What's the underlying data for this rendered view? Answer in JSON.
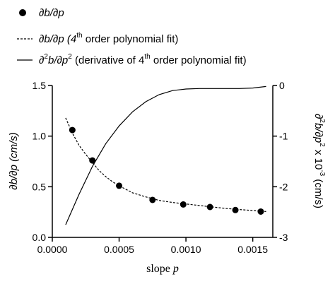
{
  "chart_data": {
    "type": "line",
    "legend": {
      "placement": "top",
      "entries": [
        {
          "key": "points",
          "marker": "filled-circle",
          "text": "∂b/∂p"
        },
        {
          "key": "fit",
          "marker": "dashed-line",
          "text_parts": [
            "∂b/∂p (4",
            "th",
            " order polynomial fit)"
          ]
        },
        {
          "key": "deriv",
          "marker": "solid-line",
          "text_parts": [
            "∂",
            "2",
            "b/∂p",
            "2",
            " (derivative of 4",
            "th",
            " order polynomial fit)"
          ]
        }
      ]
    },
    "xlabel": {
      "prefix": "slope ",
      "var": "p"
    },
    "ylabel_left": "∂b/∂p (cm/s)",
    "ylabel_right": {
      "parts": [
        "∂",
        "2",
        "b/∂p",
        "2",
        " x 10",
        "-3",
        "  (cm/s)"
      ]
    },
    "xlim": [
      0,
      0.00165
    ],
    "ylim_left": [
      0,
      1.5
    ],
    "ylim_right": [
      -3,
      0
    ],
    "xticks": [
      "0.0000",
      "0.0005",
      "0.0010",
      "0.0015"
    ],
    "xtick_values": [
      0,
      0.0005,
      0.001,
      0.0015
    ],
    "yticks_left": [
      "0.0",
      "0.5",
      "1.0",
      "1.5"
    ],
    "ytick_left_values": [
      0,
      0.5,
      1.0,
      1.5
    ],
    "yticks_right": [
      "0",
      "-1",
      "-2",
      "-3"
    ],
    "ytick_right_values": [
      0,
      -1,
      -2,
      -3
    ],
    "series": [
      {
        "name": "∂b/∂p",
        "axis": "left",
        "style": "markers",
        "x": [
          0.00015,
          0.0003,
          0.0005,
          0.00075,
          0.00098,
          0.00118,
          0.00137,
          0.00156
        ],
        "y": [
          1.06,
          0.76,
          0.51,
          0.37,
          0.325,
          0.3,
          0.27,
          0.255
        ]
      },
      {
        "name": "∂b/∂p (4th order polynomial fit)",
        "axis": "left",
        "style": "dashed",
        "x": [
          0.0001,
          0.00015,
          0.0002,
          0.00025,
          0.0003,
          0.00035,
          0.0004,
          0.00045,
          0.0005,
          0.0006,
          0.0007,
          0.0008,
          0.0009,
          0.001,
          0.0011,
          0.0012,
          0.0013,
          0.0014,
          0.0015,
          0.0016
        ],
        "y": [
          1.18,
          1.03,
          0.91,
          0.82,
          0.74,
          0.66,
          0.6,
          0.55,
          0.51,
          0.44,
          0.4,
          0.365,
          0.345,
          0.33,
          0.315,
          0.3,
          0.285,
          0.275,
          0.265,
          0.255
        ]
      },
      {
        "name": "∂²b/∂p² (derivative of 4th order polynomial fit)",
        "axis": "right",
        "style": "solid",
        "x": [
          0.0001,
          0.0002,
          0.0003,
          0.0004,
          0.0005,
          0.0006,
          0.0007,
          0.0008,
          0.0009,
          0.001,
          0.0011,
          0.0012,
          0.0013,
          0.0014,
          0.0015,
          0.0016
        ],
        "y": [
          -2.75,
          -2.15,
          -1.6,
          -1.15,
          -0.8,
          -0.52,
          -0.32,
          -0.18,
          -0.1,
          -0.07,
          -0.06,
          -0.06,
          -0.06,
          -0.06,
          -0.05,
          -0.02
        ]
      }
    ],
    "grid": false
  },
  "colors": {
    "line": "#000000",
    "background": "#ffffff"
  }
}
